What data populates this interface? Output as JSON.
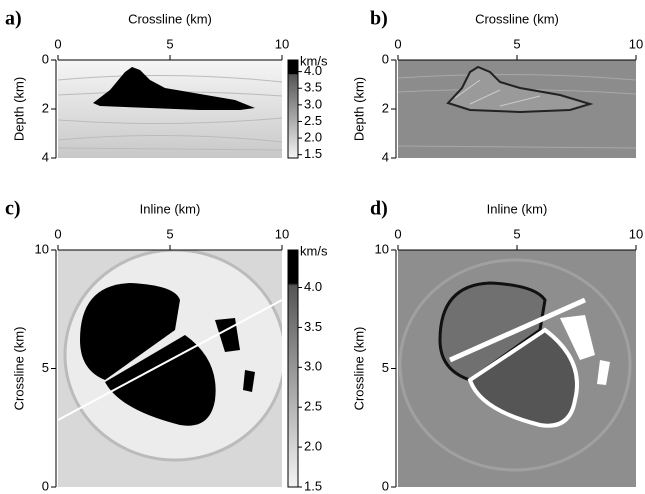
{
  "chart_data": [
    {
      "type": "image",
      "panel": "a)",
      "xlabel": "Crossline (km)",
      "ylabel": "Depth (km)",
      "xlim": [
        0,
        10
      ],
      "xticks": [
        0,
        5,
        10
      ],
      "ylim": [
        4,
        0
      ],
      "yticks": [
        0,
        2,
        4
      ],
      "colorbar": {
        "label": "km/s",
        "lim": [
          1.4,
          4.35
        ],
        "ticks": [
          {
            "value": 4,
            "label": "4.0"
          },
          3.5,
          {
            "value": 3,
            "label": "3.0"
          },
          2.5,
          {
            "value": 2,
            "label": "2.0"
          },
          1.5
        ]
      }
    },
    {
      "type": "image",
      "panel": "b)",
      "xlabel": "Crossline (km)",
      "ylabel": "Depth (km)",
      "xlim": [
        0,
        10
      ],
      "xticks": [
        0,
        5,
        10
      ],
      "ylim": [
        4,
        0
      ],
      "yticks": [
        0,
        2,
        4
      ]
    },
    {
      "type": "image",
      "panel": "c)",
      "xlabel": "Inline (km)",
      "ylabel": "Crossline (km)",
      "xlim": [
        0,
        10
      ],
      "xticks": [
        0,
        5,
        10
      ],
      "ylim": [
        0,
        10
      ],
      "yticks": [
        0,
        5,
        10
      ],
      "colorbar": {
        "label": "km/s",
        "lim": [
          1.5,
          4.47
        ],
        "ticks": [
          {
            "value": 4,
            "label": "4.0"
          },
          3.5,
          {
            "value": 3,
            "label": "3.0"
          },
          2.5,
          {
            "value": 2,
            "label": "2.0"
          },
          1.5
        ]
      }
    },
    {
      "type": "image",
      "panel": "d)",
      "xlabel": "Inline (km)",
      "ylabel": "Crossline (km)",
      "xlim": [
        0,
        10
      ],
      "xticks": [
        0,
        5,
        10
      ],
      "ylim": [
        0,
        10
      ],
      "yticks": [
        0,
        5,
        10
      ]
    }
  ]
}
